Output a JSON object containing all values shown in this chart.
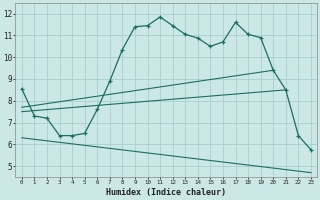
{
  "humidex_x": [
    0,
    1,
    2,
    3,
    4,
    5,
    6,
    7,
    8,
    9,
    10,
    11,
    12,
    13,
    14,
    15,
    16,
    17,
    18,
    19,
    20,
    21,
    22,
    23
  ],
  "humidex_y": [
    8.55,
    7.3,
    7.2,
    6.4,
    6.4,
    6.5,
    7.6,
    8.9,
    10.35,
    11.4,
    11.45,
    11.85,
    11.45,
    11.05,
    10.88,
    10.5,
    10.7,
    11.6,
    11.05,
    10.9,
    9.4,
    8.5,
    6.4,
    5.75
  ],
  "line1_x": [
    0,
    20
  ],
  "line1_y": [
    7.7,
    9.4
  ],
  "line2_x": [
    0,
    21
  ],
  "line2_y": [
    7.5,
    8.5
  ],
  "line3_x": [
    0,
    23
  ],
  "line3_y": [
    6.3,
    4.7
  ],
  "bg_color": "#cce8e6",
  "line_color": "#1a6e62",
  "grid_color": "#a8d0cc",
  "xlabel": "Humidex (Indice chaleur)",
  "ylabel_ticks": [
    5,
    6,
    7,
    8,
    9,
    10,
    11,
    12
  ],
  "xlim": [
    -0.5,
    23.5
  ],
  "ylim": [
    4.5,
    12.5
  ],
  "xticks": [
    0,
    1,
    2,
    3,
    4,
    5,
    6,
    7,
    8,
    9,
    10,
    11,
    12,
    13,
    14,
    15,
    16,
    17,
    18,
    19,
    20,
    21,
    22,
    23
  ]
}
